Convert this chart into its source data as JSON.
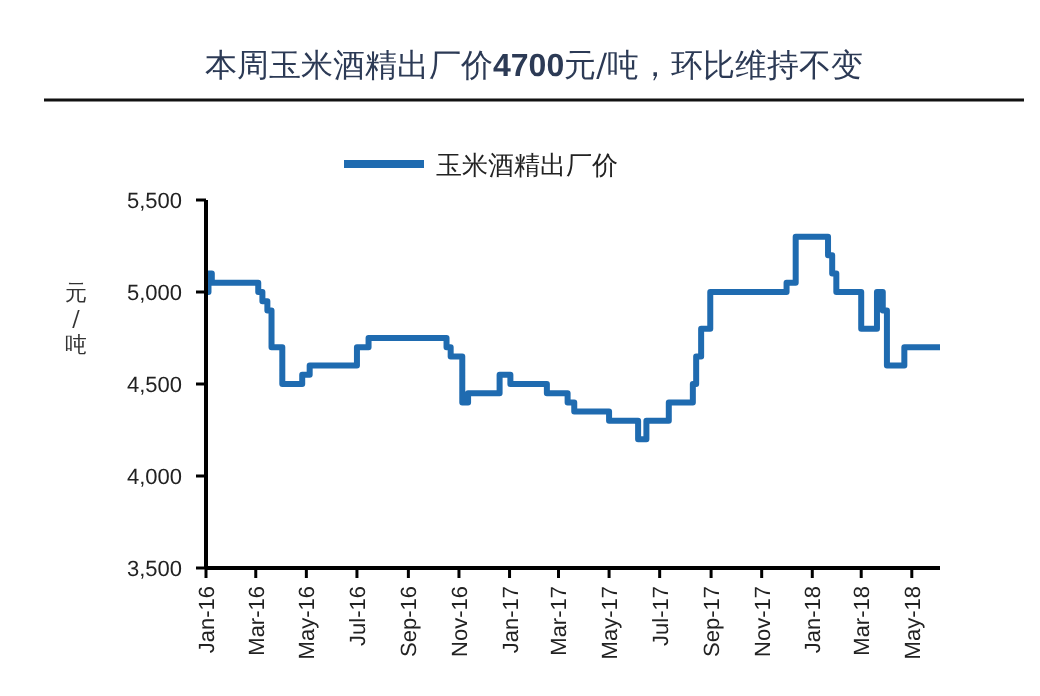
{
  "chart_data": {
    "type": "step",
    "title": "本周玉米酒精出厂价4700元/吨，环比维持不变",
    "ylabel": "元/吨",
    "legend": "top",
    "grid": false,
    "marker": "none",
    "line_style": "solid",
    "xlim": [
      "2016-01-01",
      "2018-06-04"
    ],
    "xticks": [
      {
        "value": "2016-01-01",
        "label": "Jan-16"
      },
      {
        "value": "2016-03-01",
        "label": "Mar-16"
      },
      {
        "value": "2016-05-01",
        "label": "May-16"
      },
      {
        "value": "2016-07-01",
        "label": "Jul-16"
      },
      {
        "value": "2016-09-01",
        "label": "Sep-16"
      },
      {
        "value": "2016-11-01",
        "label": "Nov-16"
      },
      {
        "value": "2017-01-01",
        "label": "Jan-17"
      },
      {
        "value": "2017-03-01",
        "label": "Mar-17"
      },
      {
        "value": "2017-05-01",
        "label": "May-17"
      },
      {
        "value": "2017-07-01",
        "label": "Jul-17"
      },
      {
        "value": "2017-09-01",
        "label": "Sep-17"
      },
      {
        "value": "2017-11-01",
        "label": "Nov-17"
      },
      {
        "value": "2018-01-01",
        "label": "Jan-18"
      },
      {
        "value": "2018-03-01",
        "label": "Mar-18"
      },
      {
        "value": "2018-05-01",
        "label": "May-18"
      }
    ],
    "ylim": [
      3500,
      5500
    ],
    "yticks": [
      {
        "value": 3500,
        "label": "3,500"
      },
      {
        "value": 4000,
        "label": "4,000"
      },
      {
        "value": 4500,
        "label": "4,500"
      },
      {
        "value": 5000,
        "label": "5,000"
      },
      {
        "value": 5500,
        "label": "5,500"
      }
    ],
    "series": [
      {
        "name": "玉米酒精出厂价",
        "color": "#1f6bb0",
        "x": [
          "2016-01-01",
          "2016-01-04",
          "2016-01-08",
          "2016-03-04",
          "2016-03-09",
          "2016-03-15",
          "2016-03-20",
          "2016-04-02",
          "2016-04-26",
          "2016-05-05",
          "2016-07-01",
          "2016-07-15",
          "2016-10-17",
          "2016-10-22",
          "2016-11-05",
          "2016-11-12",
          "2016-12-20",
          "2017-01-02",
          "2017-02-15",
          "2017-03-12",
          "2017-03-20",
          "2017-05-01",
          "2017-06-05",
          "2017-06-15",
          "2017-07-12",
          "2017-08-10",
          "2017-08-14",
          "2017-08-20",
          "2017-08-31",
          "2017-12-01",
          "2017-12-12",
          "2018-01-20",
          "2018-01-25",
          "2018-01-30",
          "2018-03-01",
          "2018-03-20",
          "2018-03-27",
          "2018-04-01",
          "2018-04-22",
          "2018-06-04"
        ],
        "values": [
          5000,
          5100,
          5050,
          5000,
          4950,
          4900,
          4700,
          4500,
          4550,
          4600,
          4700,
          4750,
          4700,
          4650,
          4400,
          4450,
          4550,
          4500,
          4450,
          4400,
          4350,
          4300,
          4200,
          4300,
          4400,
          4500,
          4650,
          4800,
          5000,
          5050,
          5300,
          5200,
          5100,
          5000,
          4800,
          5000,
          4900,
          4600,
          4700,
          4700
        ]
      }
    ]
  }
}
